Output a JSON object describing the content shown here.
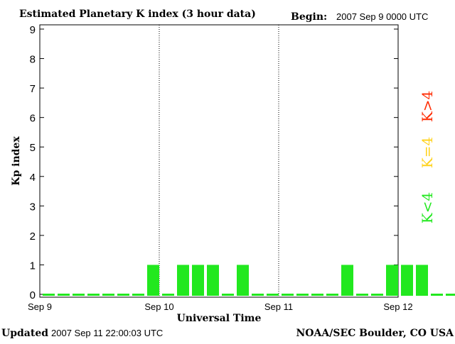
{
  "header": {
    "title": "Estimated Planetary K index (3 hour data)",
    "begin_label": "Begin:",
    "begin_value": "2007 Sep 9 0000 UTC"
  },
  "footer": {
    "updated_label": "Updated",
    "updated_value": "2007 Sep 11 22:00:03 UTC",
    "credit": "NOAA/SEC Boulder, CO USA"
  },
  "legend": [
    {
      "label": "K>4",
      "color": "#ff2a00"
    },
    {
      "label": "K=4",
      "color": "#ffd21a"
    },
    {
      "label": "K<4",
      "color": "#22e81f"
    }
  ],
  "chart_data": {
    "type": "bar",
    "title": "Estimated Planetary K index (3 hour data)",
    "xlabel": "Universal Time",
    "ylabel": "Kp index",
    "ylim": [
      0,
      9
    ],
    "yticks": [
      0,
      1,
      2,
      3,
      4,
      5,
      6,
      7,
      8,
      9
    ],
    "x_tick_labels": [
      "Sep 9",
      "Sep 10",
      "Sep 11",
      "Sep 12"
    ],
    "x_day_dividers": [
      "Sep 10",
      "Sep 11"
    ],
    "interval_hours": 3,
    "values": [
      0,
      0,
      0,
      0,
      0,
      0,
      0,
      1,
      0,
      1,
      1,
      1,
      0,
      1,
      0,
      0,
      0,
      0,
      0,
      0,
      1,
      0,
      0,
      1,
      1,
      1,
      0,
      0
    ],
    "bar_color": "#22e81f"
  }
}
